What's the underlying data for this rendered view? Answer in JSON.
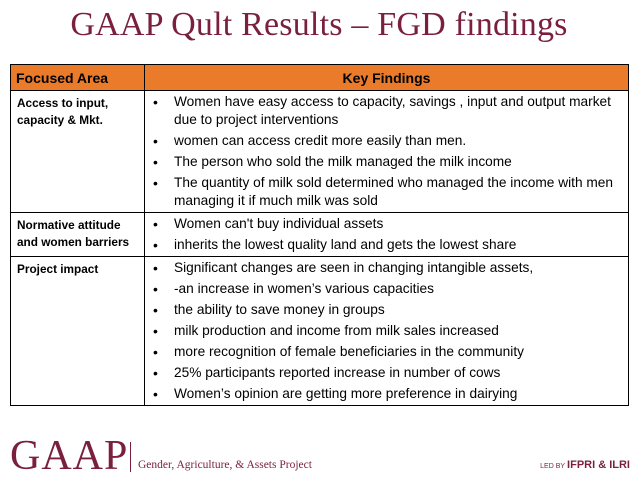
{
  "title": "GAAP Qult Results – FGD findings",
  "table": {
    "headers": {
      "area": "Focused Area",
      "findings": "Key Findings"
    },
    "rows": [
      {
        "area": "Access to input, capacity & Mkt.",
        "findings": [
          "Women have easy access to capacity, savings , input and output market due to project interventions",
          "women can access credit more easily than men.",
          "The person who sold the milk managed the milk income",
          "The quantity of milk sold determined who managed the income with men managing it if much milk was sold"
        ]
      },
      {
        "area": "Normative attitude and women barriers",
        "findings": [
          "Women can't buy individual assets",
          "inherits the lowest quality land and gets the lowest share"
        ]
      },
      {
        "area": "Project impact",
        "findings": [
          "Significant changes are seen in changing intangible assets,",
          "-an increase in women’s various capacities",
          "the ability to save money in groups",
          "milk production and income from milk sales increased",
          "more recognition of female beneficiaries in the community",
          "25% participants reported increase in number of cows",
          "Women’s opinion are getting more preference in dairying"
        ]
      }
    ]
  },
  "footer": {
    "logo": "GAAP",
    "logo_subtitle": "Gender, Agriculture, & Assets Project",
    "led_by_prefix": "LED BY",
    "led_by": "IFPRI & ILRI"
  },
  "colors": {
    "title": "#7a1f3d",
    "header_bg": "#e97b2a"
  }
}
